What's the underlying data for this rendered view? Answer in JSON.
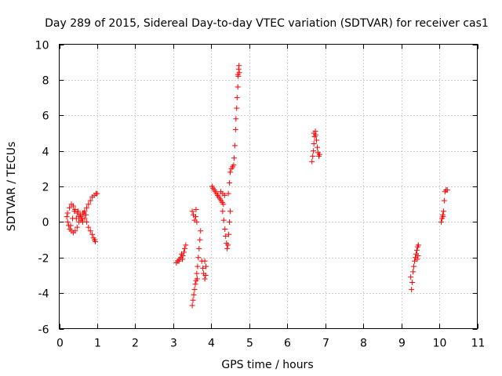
{
  "chart_data": {
    "type": "scatter",
    "title": "Day 289 of 2015, Sidereal Day-to-day VTEC variation (SDTVAR) for receiver cas1",
    "xlabel": "GPS time / hours",
    "ylabel": "SDTVAR / TECUs",
    "xlim": [
      0,
      11
    ],
    "ylim": [
      -6,
      10
    ],
    "x_ticks": [
      0,
      1,
      2,
      3,
      4,
      5,
      6,
      7,
      8,
      9,
      10,
      11
    ],
    "x_tick_labels": [
      "0",
      "1",
      "2",
      "3",
      "4",
      "5",
      "6",
      "7",
      "8",
      "9",
      "10",
      "11"
    ],
    "y_ticks": [
      -6,
      -4,
      -2,
      0,
      2,
      4,
      6,
      8,
      10
    ],
    "y_tick_labels": [
      "-6",
      "-4",
      "-2",
      "0",
      "2",
      "4",
      "6",
      "8",
      "10"
    ],
    "grid": true,
    "marker": "+",
    "color": "#ff0000",
    "series": [
      {
        "name": "cas1",
        "points": [
          [
            0.2,
            0.3
          ],
          [
            0.22,
            0.0
          ],
          [
            0.25,
            -0.2
          ],
          [
            0.28,
            -0.4
          ],
          [
            0.32,
            -0.5
          ],
          [
            0.37,
            -0.6
          ],
          [
            0.42,
            -0.5
          ],
          [
            0.47,
            -0.3
          ],
          [
            0.52,
            0.0
          ],
          [
            0.57,
            0.3
          ],
          [
            0.62,
            0.5
          ],
          [
            0.67,
            0.6
          ],
          [
            0.72,
            0.8
          ],
          [
            0.77,
            1.0
          ],
          [
            0.82,
            1.2
          ],
          [
            0.87,
            1.4
          ],
          [
            0.92,
            1.5
          ],
          [
            0.97,
            1.6
          ],
          [
            1.0,
            1.6
          ],
          [
            0.22,
            0.5
          ],
          [
            0.27,
            0.8
          ],
          [
            0.32,
            1.0
          ],
          [
            0.37,
            0.9
          ],
          [
            0.42,
            0.7
          ],
          [
            0.47,
            0.5
          ],
          [
            0.52,
            0.3
          ],
          [
            0.57,
            0.1
          ],
          [
            0.62,
            0.0
          ],
          [
            0.67,
            0.2
          ],
          [
            0.7,
            0.4
          ],
          [
            0.72,
            0.0
          ],
          [
            0.77,
            -0.3
          ],
          [
            0.82,
            -0.5
          ],
          [
            0.87,
            -0.7
          ],
          [
            0.9,
            -0.9
          ],
          [
            0.93,
            -1.0
          ],
          [
            0.95,
            -1.1
          ],
          [
            0.3,
            -0.2
          ],
          [
            0.35,
            0.2
          ],
          [
            0.4,
            0.6
          ],
          [
            0.45,
            0.2
          ],
          [
            0.5,
            0.6
          ],
          [
            0.55,
            0.4
          ],
          [
            0.6,
            0.2
          ],
          [
            0.65,
            0.5
          ],
          [
            3.08,
            -2.3
          ],
          [
            3.12,
            -2.2
          ],
          [
            3.16,
            -2.1
          ],
          [
            3.2,
            -2.0
          ],
          [
            3.22,
            -1.8
          ],
          [
            3.25,
            -1.9
          ],
          [
            3.28,
            -1.7
          ],
          [
            3.3,
            -1.5
          ],
          [
            3.33,
            -1.3
          ],
          [
            3.15,
            -2.2
          ],
          [
            3.24,
            -2.1
          ],
          [
            3.5,
            -4.7
          ],
          [
            3.52,
            -4.4
          ],
          [
            3.54,
            -4.1
          ],
          [
            3.56,
            -3.8
          ],
          [
            3.58,
            -3.5
          ],
          [
            3.6,
            -3.3
          ],
          [
            3.62,
            -2.9
          ],
          [
            3.64,
            -2.5
          ],
          [
            3.66,
            -2.0
          ],
          [
            3.68,
            -1.5
          ],
          [
            3.7,
            -1.0
          ],
          [
            3.72,
            -0.5
          ],
          [
            3.63,
            -3.2
          ],
          [
            3.5,
            0.6
          ],
          [
            3.53,
            0.4
          ],
          [
            3.56,
            0.1
          ],
          [
            3.59,
            0.3
          ],
          [
            3.62,
            0.0
          ],
          [
            3.6,
            0.7
          ],
          [
            3.75,
            -2.2
          ],
          [
            3.78,
            -2.6
          ],
          [
            3.8,
            -2.9
          ],
          [
            3.83,
            -3.2
          ],
          [
            3.85,
            -3.0
          ],
          [
            3.86,
            -2.5
          ],
          [
            3.83,
            -2.2
          ],
          [
            4.02,
            2.0
          ],
          [
            4.05,
            1.9
          ],
          [
            4.08,
            1.8
          ],
          [
            4.11,
            1.7
          ],
          [
            4.14,
            1.6
          ],
          [
            4.17,
            1.5
          ],
          [
            4.2,
            1.4
          ],
          [
            4.23,
            1.3
          ],
          [
            4.26,
            1.2
          ],
          [
            4.29,
            1.1
          ],
          [
            4.32,
            1.0
          ],
          [
            4.35,
            1.5
          ],
          [
            4.3,
            1.6
          ],
          [
            4.25,
            1.7
          ],
          [
            4.3,
            0.6
          ],
          [
            4.33,
            0.1
          ],
          [
            4.36,
            -0.4
          ],
          [
            4.38,
            -0.8
          ],
          [
            4.4,
            -1.2
          ],
          [
            4.42,
            -1.5
          ],
          [
            4.44,
            -1.3
          ],
          [
            4.46,
            -0.7
          ],
          [
            4.48,
            0.0
          ],
          [
            4.5,
            0.6
          ],
          [
            4.45,
            1.6
          ],
          [
            4.48,
            2.2
          ],
          [
            4.5,
            2.8
          ],
          [
            4.53,
            3.0
          ],
          [
            4.56,
            3.1
          ],
          [
            4.59,
            3.2
          ],
          [
            4.6,
            3.6
          ],
          [
            4.62,
            4.3
          ],
          [
            4.64,
            5.2
          ],
          [
            4.65,
            5.8
          ],
          [
            4.67,
            6.4
          ],
          [
            4.68,
            7.0
          ],
          [
            4.7,
            7.6
          ],
          [
            4.71,
            8.2
          ],
          [
            4.72,
            8.6
          ],
          [
            4.73,
            8.8
          ],
          [
            4.74,
            8.4
          ],
          [
            4.7,
            8.3
          ],
          [
            6.65,
            3.4
          ],
          [
            6.67,
            3.7
          ],
          [
            6.69,
            4.0
          ],
          [
            6.7,
            4.4
          ],
          [
            6.72,
            4.8
          ],
          [
            6.74,
            5.1
          ],
          [
            6.75,
            4.9
          ],
          [
            6.77,
            4.6
          ],
          [
            6.79,
            4.2
          ],
          [
            6.81,
            3.9
          ],
          [
            6.83,
            3.7
          ],
          [
            6.85,
            3.8
          ],
          [
            6.7,
            5.0
          ],
          [
            9.25,
            -3.1
          ],
          [
            9.27,
            -3.8
          ],
          [
            9.29,
            -3.4
          ],
          [
            9.31,
            -2.8
          ],
          [
            9.33,
            -2.5
          ],
          [
            9.35,
            -2.2
          ],
          [
            9.37,
            -2.0
          ],
          [
            9.39,
            -1.8
          ],
          [
            9.41,
            -1.6
          ],
          [
            9.43,
            -1.4
          ],
          [
            9.45,
            -1.3
          ],
          [
            9.44,
            -1.9
          ],
          [
            9.42,
            -2.1
          ],
          [
            10.05,
            0.0
          ],
          [
            10.07,
            0.2
          ],
          [
            10.09,
            0.4
          ],
          [
            10.11,
            0.6
          ],
          [
            10.13,
            1.2
          ],
          [
            10.15,
            1.7
          ],
          [
            10.18,
            1.8
          ],
          [
            10.21,
            1.8
          ],
          [
            10.1,
            0.3
          ]
        ]
      }
    ]
  }
}
